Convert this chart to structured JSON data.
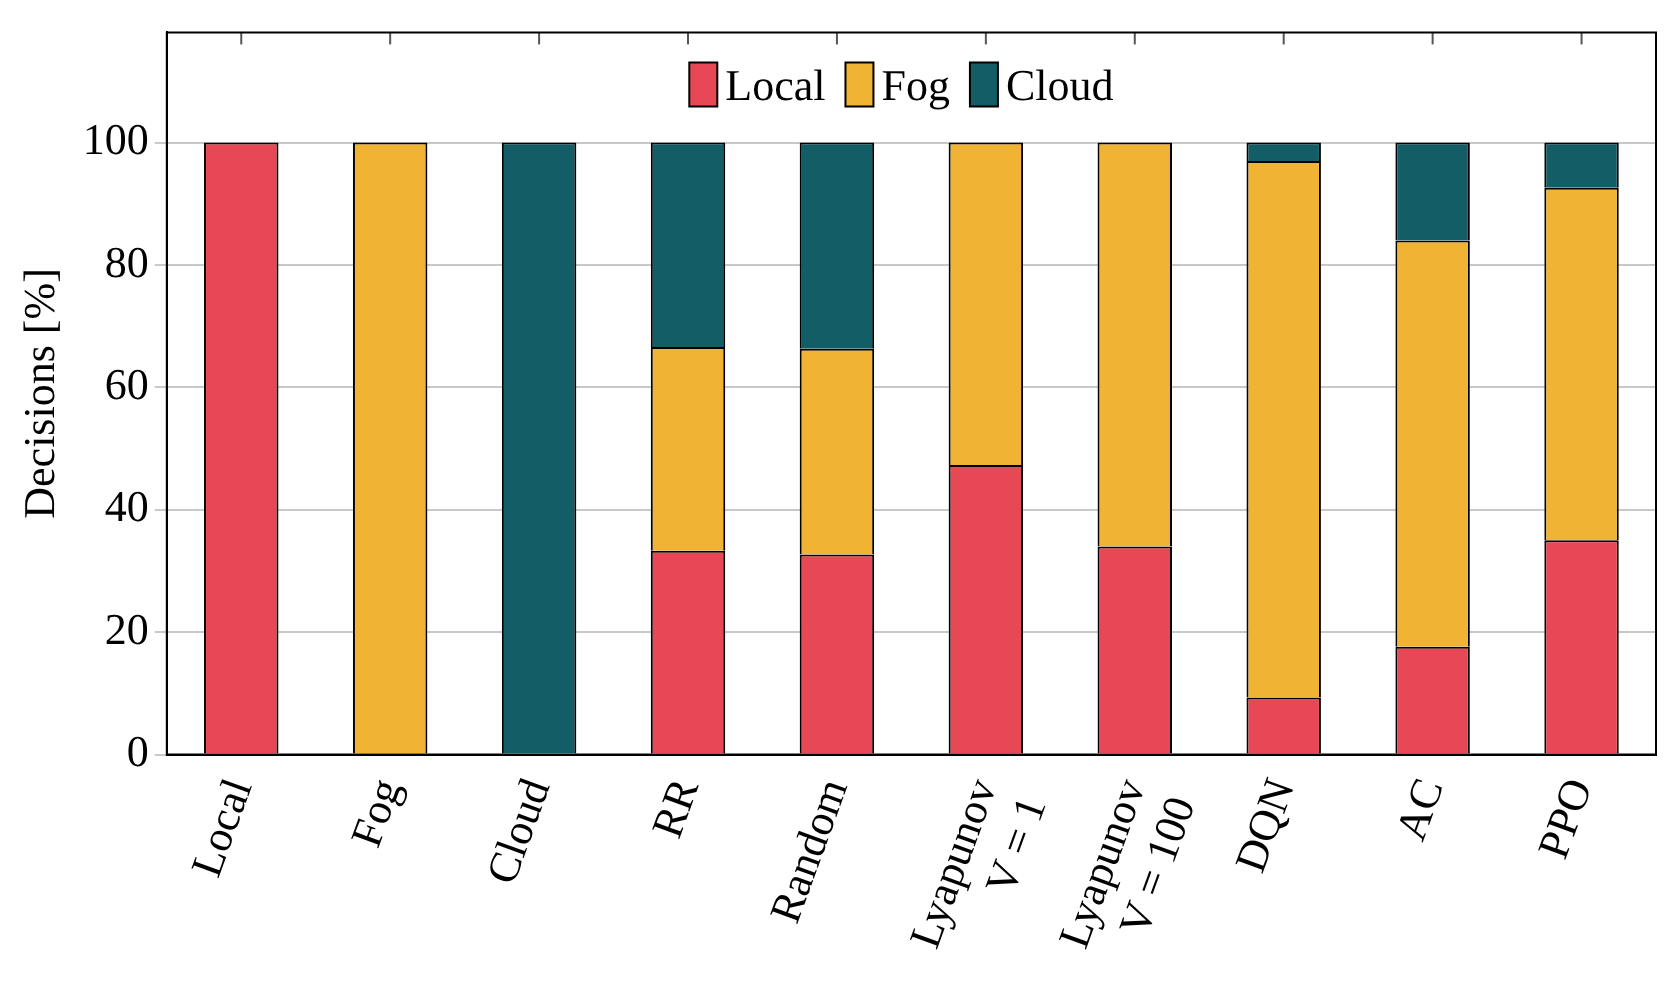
{
  "chart_data": {
    "type": "bar",
    "stacked": true,
    "ylabel": "Decisions [%]",
    "categories": [
      "Local",
      "Fog",
      "Cloud",
      "RR",
      "Random",
      "Lyapunov\nV = 1",
      "Lyapunov\nV = 100",
      "DQN",
      "AC",
      "PPO"
    ],
    "series": [
      {
        "name": "Local",
        "color": "#e84855",
        "values": [
          100,
          0,
          0,
          33.3,
          32.7,
          47.3,
          34,
          9.3,
          17.6,
          35
        ]
      },
      {
        "name": "Fog",
        "color": "#f0b334",
        "values": [
          0,
          100,
          0,
          33.3,
          33.6,
          52.7,
          66,
          87.7,
          66.4,
          57.6
        ]
      },
      {
        "name": "Cloud",
        "color": "#135e66",
        "values": [
          0,
          0,
          100,
          33.4,
          33.7,
          0,
          0,
          3,
          16,
          7.4
        ]
      }
    ],
    "ylim": [
      0,
      118
    ],
    "yticks": [
      0,
      20,
      40,
      60,
      80,
      100
    ],
    "grid": "y",
    "legend": "top"
  }
}
